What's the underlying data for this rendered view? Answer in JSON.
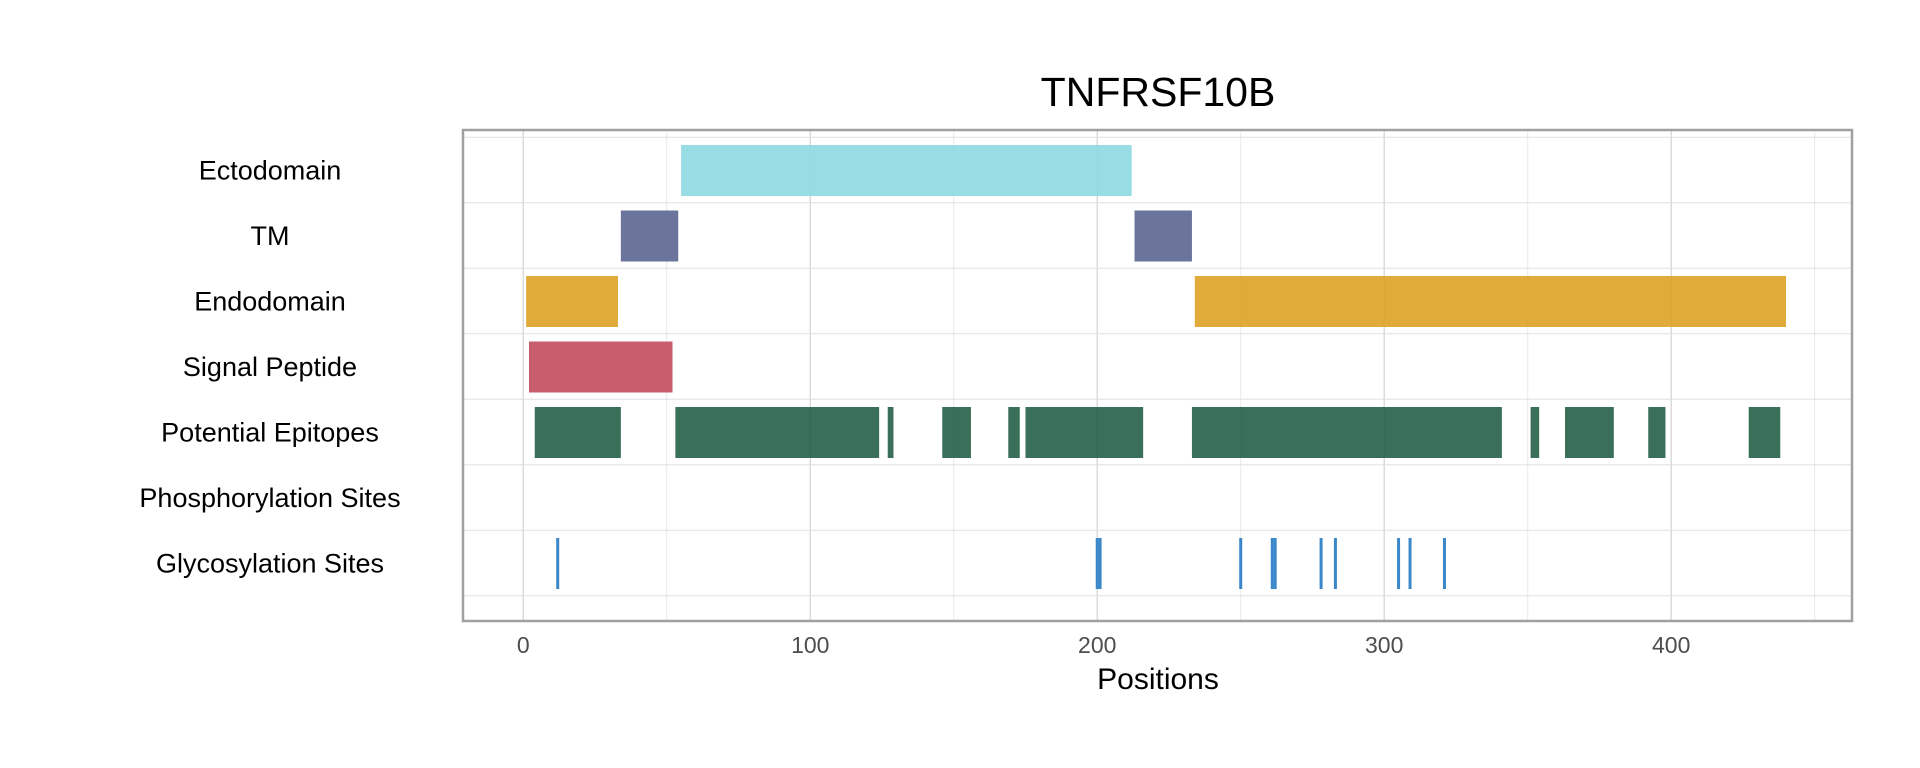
{
  "chart_data": {
    "type": "bar",
    "title": "TNFRSF10B",
    "xlabel": "Positions",
    "ylabel": "",
    "xlim": [
      -21,
      463
    ],
    "xticks": [
      0,
      100,
      200,
      300,
      400
    ],
    "xtick_labels": [
      "0",
      "100",
      "200",
      "300",
      "400"
    ],
    "grid": true,
    "legend": "none",
    "rows": [
      {
        "label": "Ectodomain",
        "color": "#8dd9e1",
        "segments": [
          [
            55,
            212
          ]
        ]
      },
      {
        "label": "TM",
        "color": "#5b6590",
        "segments": [
          [
            34,
            54
          ],
          [
            213,
            233
          ]
        ]
      },
      {
        "label": "Endodomain",
        "color": "#dea223",
        "segments": [
          [
            1,
            33
          ],
          [
            234,
            440
          ]
        ]
      },
      {
        "label": "Signal Peptide",
        "color": "#c24c5c",
        "segments": [
          [
            2,
            52
          ]
        ]
      },
      {
        "label": "Potential Epitopes",
        "color": "#255f47",
        "segments": [
          [
            4,
            34
          ],
          [
            53,
            124
          ],
          [
            127,
            129
          ],
          [
            146,
            156
          ],
          [
            169,
            173
          ],
          [
            175,
            216
          ],
          [
            233,
            341
          ],
          [
            351,
            354
          ],
          [
            363,
            380
          ],
          [
            392,
            398
          ],
          [
            427,
            438
          ]
        ]
      },
      {
        "label": "Phosphorylation Sites",
        "color": "#3a87c9",
        "segments": []
      },
      {
        "label": "Glycosylation Sites",
        "color": "#3a87c9",
        "positions": [
          12,
          200,
          201,
          250,
          261,
          262,
          278,
          283,
          305,
          309,
          321
        ]
      }
    ]
  }
}
